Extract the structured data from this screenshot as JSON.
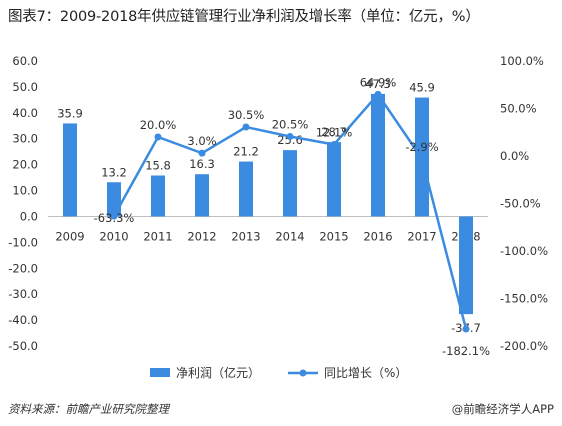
{
  "title": "图表7：2009-2018年供应链管理行业净利润及增长率（单位：亿元，%）",
  "source_note": "资料来源：前瞻产业研究院整理",
  "credit": "@前瞻经济学人APP",
  "colors": {
    "bar": "#3b8be0",
    "line": "#3b8be0",
    "axis": "#bfbfbf"
  },
  "chart_data": {
    "type": "bar",
    "categories": [
      "2009",
      "2010",
      "2011",
      "2012",
      "2013",
      "2014",
      "2015",
      "2016",
      "2017",
      "2018"
    ],
    "series": [
      {
        "name": "净利润（亿元）",
        "type": "bar",
        "axis": "left",
        "values": [
          35.9,
          13.2,
          15.8,
          16.3,
          21.2,
          25.6,
          28.7,
          47.3,
          45.9,
          -37.7
        ]
      },
      {
        "name": "同比增长（%）",
        "type": "line",
        "axis": "right",
        "values": [
          null,
          -63.3,
          20.0,
          3.0,
          30.5,
          20.5,
          12.1,
          64.9,
          -2.9,
          -182.1
        ]
      }
    ],
    "bar_labels": [
      "35.9",
      "13.2",
      "15.8",
      "16.3",
      "21.2",
      "25.6",
      "28.7",
      "47.3",
      "45.9",
      "-37.7"
    ],
    "line_labels": [
      "",
      "-63.3%",
      "20.0%",
      "3.0%",
      "30.5%",
      "20.5%",
      "12.1%",
      "64.9%",
      "-2.9%",
      "-182.1%"
    ],
    "left_axis": {
      "ylim": [
        -50,
        60
      ],
      "ticks": [
        "60.0",
        "50.0",
        "40.0",
        "30.0",
        "20.0",
        "10.0",
        "0.0",
        "-10.0",
        "-20.0",
        "-30.0",
        "-40.0",
        "-50.0"
      ]
    },
    "right_axis": {
      "ylim": [
        -200,
        100
      ],
      "ticks": [
        "100.0%",
        "50.0%",
        "0.0%",
        "-50.0%",
        "-100.0%",
        "-150.0%",
        "-200.0%"
      ]
    },
    "legend": [
      "净利润（亿元）",
      "同比增长（%）"
    ],
    "legend_position": "bottom"
  }
}
